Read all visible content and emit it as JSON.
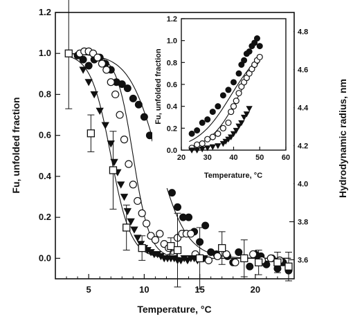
{
  "chart_data": [
    {
      "type": "scatter",
      "title": "",
      "xlabel": "Temperature, °C",
      "ylabel": "Fu, unfolded fraction",
      "y2label": "Hydrodynamic radius, nm",
      "xlim": [
        2,
        23.5
      ],
      "ylim": [
        -0.1,
        1.2
      ],
      "y2lim": [
        3.5,
        4.9
      ],
      "xticks": [
        5,
        10,
        15,
        20
      ],
      "yticks": [
        0.0,
        0.2,
        0.4,
        0.6,
        0.8,
        1.0,
        1.2
      ],
      "yticklabels": [
        "0.0",
        "0.2",
        "0.4",
        "0.6",
        "0.8",
        "1.0",
        "1.2"
      ],
      "y2ticks": [
        3.6,
        3.8,
        4.0,
        4.2,
        4.4,
        4.6,
        4.8
      ],
      "y2ticklabels": [
        "3.6",
        "3.8",
        "4.0",
        "4.2",
        "4.4",
        "4.6",
        "4.8"
      ],
      "grid": false,
      "series": [
        {
          "marker": "filled-circle",
          "x": [
            4.0,
            4.5,
            5.0,
            5.5,
            6.0,
            6.5,
            7.0,
            7.5,
            8.0,
            8.5,
            9.0,
            9.5,
            10.0,
            10.5,
            11.0,
            11.5,
            12.0,
            12.5,
            13.0,
            13.5,
            14.0,
            14.5,
            15.0,
            15.5,
            16.0,
            16.5,
            17.0,
            17.5,
            18.0,
            18.5,
            19.0,
            19.5,
            20.0,
            20.5,
            21.0,
            21.5,
            22.0,
            22.5,
            23.0
          ],
          "y": [
            0.99,
            0.97,
            0.94,
            0.97,
            0.98,
            0.95,
            0.92,
            0.86,
            0.85,
            0.83,
            0.78,
            0.75,
            0.69,
            0.6,
            0.58,
            0.44,
            0.43,
            0.32,
            0.25,
            0.2,
            0.2,
            0.13,
            0.08,
            0.16,
            0.03,
            0.02,
            0.05,
            0.01,
            -0.02,
            0.03,
            0.0,
            -0.04,
            0.02,
            0.01,
            -0.03,
            0.0,
            -0.05,
            -0.02,
            -0.06
          ],
          "fit": {
            "midpoint": 11.2,
            "slope": 1.3
          }
        },
        {
          "marker": "open-circle",
          "x": [
            4.2,
            4.6,
            5.0,
            5.4,
            5.8,
            6.2,
            6.6,
            7.0,
            7.4,
            7.8,
            8.2,
            8.6,
            9.0,
            9.4,
            9.8,
            10.2,
            10.6,
            11.0,
            11.4,
            11.8,
            12.2,
            12.6,
            13.0,
            13.4,
            13.8,
            14.2,
            14.6,
            15.0,
            15.8,
            16.6,
            17.4,
            18.2,
            19.0,
            19.8,
            20.6,
            21.4,
            22.2
          ],
          "y": [
            1.0,
            1.01,
            1.01,
            1.0,
            0.98,
            0.95,
            0.92,
            0.86,
            0.8,
            0.7,
            0.58,
            0.46,
            0.36,
            0.28,
            0.22,
            0.17,
            0.11,
            0.09,
            0.12,
            0.07,
            0.05,
            0.02,
            0.1,
            0.12,
            0.12,
            0.12,
            0.02,
            0.0,
            -0.01,
            0.01,
            0.02,
            -0.02,
            0.0,
            0.02,
            -0.01,
            0.0,
            -0.01
          ],
          "fit": {
            "midpoint": 9.0,
            "slope": 0.75
          }
        },
        {
          "marker": "filled-triangle-down",
          "x": [
            4.5,
            5.0,
            5.5,
            6.0,
            6.5,
            7.0,
            7.3,
            7.6,
            7.9,
            8.2,
            8.5,
            8.8,
            9.1,
            9.4,
            9.7,
            10.0,
            10.3,
            10.6,
            10.9,
            11.2,
            11.5,
            11.8,
            12.1,
            12.4,
            12.7,
            13.0,
            13.3,
            13.6,
            13.9,
            14.2,
            14.5,
            14.8,
            15.1,
            15.4
          ],
          "y": [
            0.92,
            0.86,
            0.8,
            0.72,
            0.65,
            0.56,
            0.47,
            0.42,
            0.36,
            0.3,
            0.23,
            0.18,
            0.14,
            0.1,
            0.07,
            0.05,
            0.04,
            0.03,
            0.02,
            0.02,
            0.01,
            0.0,
            0.0,
            0.0,
            0.0,
            -0.01,
            -0.01,
            0.0,
            -0.01,
            0.0,
            0.0,
            -0.01,
            0.0,
            0.0
          ],
          "fit": {
            "midpoint": 7.0,
            "slope": 0.9
          }
        },
        {
          "marker": "open-square",
          "x": [
            3.2,
            5.2,
            7.2,
            8.4,
            9.8,
            12.4,
            13.0,
            15.0,
            17.0,
            19.0,
            20.3,
            22.0,
            23.0
          ],
          "y": [
            1.0,
            0.61,
            0.43,
            0.15,
            0.05,
            0.06,
            0.04,
            0.0,
            0.05,
            0.0,
            -0.02,
            -0.02,
            -0.04
          ],
          "error": [
            0.27,
            0.09,
            0.19,
            0.11,
            0.06,
            0.04,
            0.18,
            0.15,
            0.08,
            0.09,
            0.06,
            0.05,
            0.07
          ]
        }
      ]
    },
    {
      "type": "scatter",
      "title": "",
      "xlabel": "Temperature, °C",
      "ylabel": "Fu, unfolded fraction",
      "xlim": [
        20,
        60
      ],
      "ylim": [
        0,
        1.2
      ],
      "xticks": [
        20,
        30,
        40,
        50,
        60
      ],
      "yticks": [
        0.0,
        0.2,
        0.4,
        0.6,
        0.8,
        1.0,
        1.2
      ],
      "yticklabels": [
        "0.0",
        "0.2",
        "0.4",
        "0.6",
        "0.8",
        "1.0",
        "1.2"
      ],
      "grid": false,
      "series": [
        {
          "marker": "filled-circle",
          "x": [
            24,
            26,
            28,
            30,
            32,
            34,
            36,
            38,
            40,
            42,
            43,
            44,
            45,
            46,
            47,
            48,
            49,
            50
          ],
          "y": [
            0.15,
            0.18,
            0.25,
            0.28,
            0.35,
            0.4,
            0.5,
            0.55,
            0.62,
            0.7,
            0.78,
            0.82,
            0.88,
            0.9,
            0.95,
            0.98,
            1.02,
            0.95
          ],
          "fit": {
            "midpoint": 39,
            "slope": 6.5
          }
        },
        {
          "marker": "open-circle",
          "x": [
            24,
            26,
            28,
            30,
            32,
            34,
            36,
            38,
            39,
            40,
            41,
            42,
            43,
            44,
            45,
            46,
            47,
            48,
            49,
            50
          ],
          "y": [
            0.02,
            0.05,
            0.06,
            0.1,
            0.12,
            0.15,
            0.2,
            0.25,
            0.35,
            0.4,
            0.45,
            0.52,
            0.58,
            0.62,
            0.66,
            0.7,
            0.74,
            0.78,
            0.82,
            0.85
          ],
          "fit": {
            "midpoint": 42,
            "slope": 5.5
          }
        },
        {
          "marker": "filled-triangle-down",
          "x": [
            24,
            26,
            28,
            30,
            32,
            34,
            36,
            37,
            38,
            39,
            40,
            41,
            42,
            43,
            44,
            45,
            46
          ],
          "y": [
            0.0,
            0.0,
            0.01,
            0.02,
            0.03,
            0.04,
            0.06,
            0.08,
            0.1,
            0.12,
            0.15,
            0.18,
            0.22,
            0.25,
            0.3,
            0.33,
            0.38
          ]
        }
      ]
    }
  ]
}
